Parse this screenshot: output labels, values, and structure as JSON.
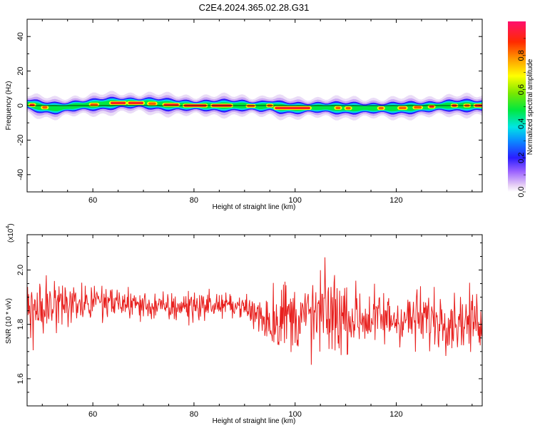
{
  "title": "C2E4.2024.365.02.28.G31",
  "chart_data": [
    {
      "type": "heatmap",
      "xlabel": "Height of straight line (km)",
      "ylabel": "Frequency (Hz)",
      "xlim": [
        47,
        137
      ],
      "ylim": [
        -50,
        50
      ],
      "xticks": [
        60,
        80,
        100,
        120
      ],
      "yticks": [
        -40,
        -20,
        0,
        20,
        40
      ],
      "colorbar": {
        "label": "Normalized spectral amplitude",
        "range": [
          0,
          1
        ],
        "ticks": [
          0.0,
          0.2,
          0.4,
          0.6,
          0.8
        ]
      },
      "band": {
        "center_freq_hz": [
          [
            47,
            1.0
          ],
          [
            50,
            -1.0
          ],
          [
            53,
            -1.5
          ],
          [
            57,
            0.0
          ],
          [
            60,
            0.5
          ],
          [
            65,
            1.5
          ],
          [
            70,
            1.5
          ],
          [
            75,
            0.5
          ],
          [
            80,
            0.0
          ],
          [
            85,
            0.0
          ],
          [
            90,
            0.0
          ],
          [
            93,
            -0.5
          ],
          [
            95,
            0.0
          ],
          [
            97,
            -1.0
          ],
          [
            100,
            -1.5
          ],
          [
            105,
            -1.0
          ],
          [
            110,
            -1.5
          ],
          [
            115,
            -1.5
          ],
          [
            120,
            -1.5
          ],
          [
            125,
            -1.0
          ],
          [
            130,
            0.0
          ],
          [
            135,
            0.0
          ],
          [
            137,
            0.0
          ]
        ],
        "half_width_hz": 3,
        "peaks": [
          {
            "x": [
              47.5,
              48.5
            ],
            "amplitude": 0.95
          },
          {
            "x": [
              50,
              51
            ],
            "amplitude": 0.9
          },
          {
            "x": [
              59.5,
              61
            ],
            "amplitude": 0.9
          },
          {
            "x": [
              63.5,
              66.5
            ],
            "amplitude": 0.95
          },
          {
            "x": [
              67,
              70
            ],
            "amplitude": 0.95
          },
          {
            "x": [
              71,
              72.5
            ],
            "amplitude": 0.9
          },
          {
            "x": [
              74,
              77
            ],
            "amplitude": 0.95
          },
          {
            "x": [
              78,
              82.5
            ],
            "amplitude": 0.95
          },
          {
            "x": [
              83.5,
              87.5
            ],
            "amplitude": 0.95
          },
          {
            "x": [
              90.5,
              92
            ],
            "amplitude": 0.9
          },
          {
            "x": [
              94.5,
              95.5
            ],
            "amplitude": 0.9
          },
          {
            "x": [
              96,
              103
            ],
            "amplitude": 0.95
          },
          {
            "x": [
              108,
              109
            ],
            "amplitude": 0.9
          },
          {
            "x": [
              110,
              111
            ],
            "amplitude": 0.9
          },
          {
            "x": [
              116.5,
              117.5
            ],
            "amplitude": 0.9
          },
          {
            "x": [
              120.5,
              122
            ],
            "amplitude": 0.9
          },
          {
            "x": [
              123.5,
              125
            ],
            "amplitude": 0.9
          },
          {
            "x": [
              126.5,
              127.5
            ],
            "amplitude": 0.95
          },
          {
            "x": [
              131,
              132
            ],
            "amplitude": 0.95
          },
          {
            "x": [
              133.5,
              134.5
            ],
            "amplitude": 0.9
          },
          {
            "x": [
              135.5,
              137
            ],
            "amplitude": 0.95
          }
        ]
      }
    },
    {
      "type": "line",
      "xlabel": "Height of straight line (km)",
      "ylabel": "SNR (10 * v/v)",
      "y_multiplier_label": "(x10",
      "y_multiplier_exponent": "4",
      "xlim": [
        47,
        137
      ],
      "ylim": [
        1.5,
        2.13
      ],
      "xticks": [
        60,
        80,
        100,
        120
      ],
      "yticks": [
        1.6,
        1.8,
        2.0
      ],
      "color": "#e8201e",
      "series": [
        {
          "envelope": [
            {
              "x": 47,
              "mean": 1.87,
              "spread": 0.11
            },
            {
              "x": 48,
              "mean": 1.85,
              "spread": 0.16
            },
            {
              "x": 50,
              "mean": 1.86,
              "spread": 0.12
            },
            {
              "x": 55,
              "mean": 1.88,
              "spread": 0.07
            },
            {
              "x": 60,
              "mean": 1.87,
              "spread": 0.06
            },
            {
              "x": 65,
              "mean": 1.88,
              "spread": 0.06
            },
            {
              "x": 70,
              "mean": 1.87,
              "spread": 0.05
            },
            {
              "x": 75,
              "mean": 1.86,
              "spread": 0.05
            },
            {
              "x": 80,
              "mean": 1.87,
              "spread": 0.06
            },
            {
              "x": 85,
              "mean": 1.87,
              "spread": 0.04
            },
            {
              "x": 89,
              "mean": 1.87,
              "spread": 0.03
            },
            {
              "x": 92,
              "mean": 1.84,
              "spread": 0.08
            },
            {
              "x": 95,
              "mean": 1.82,
              "spread": 0.11
            },
            {
              "x": 97,
              "mean": 1.83,
              "spread": 0.14
            },
            {
              "x": 100,
              "mean": 1.83,
              "spread": 0.11
            },
            {
              "x": 103,
              "mean": 1.82,
              "spread": 0.14
            },
            {
              "x": 106,
              "mean": 1.84,
              "spread": 0.16
            },
            {
              "x": 110,
              "mean": 1.83,
              "spread": 0.12
            },
            {
              "x": 115,
              "mean": 1.82,
              "spread": 0.1
            },
            {
              "x": 120,
              "mean": 1.82,
              "spread": 0.09
            },
            {
              "x": 125,
              "mean": 1.82,
              "spread": 0.1
            },
            {
              "x": 130,
              "mean": 1.82,
              "spread": 0.1
            },
            {
              "x": 134,
              "mean": 1.81,
              "spread": 0.1
            },
            {
              "x": 137,
              "mean": 1.82,
              "spread": 0.09
            }
          ],
          "points_per_km": 10,
          "seed": 365
        }
      ]
    }
  ]
}
